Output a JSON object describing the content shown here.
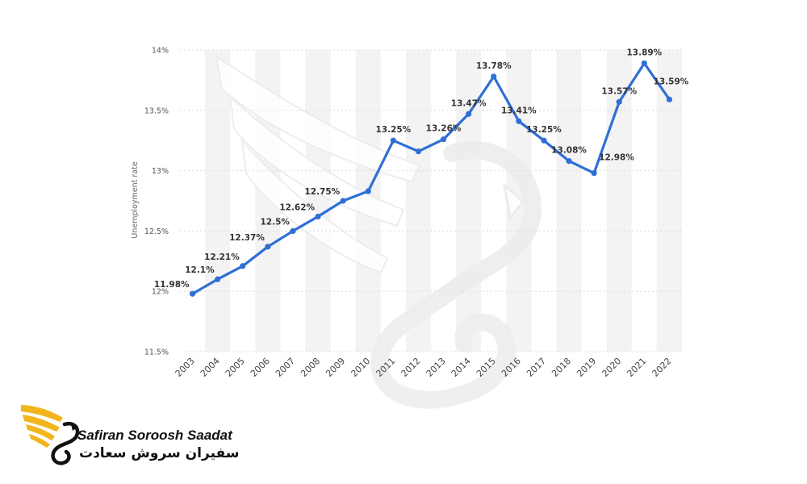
{
  "chart_data": {
    "type": "line",
    "title": "",
    "xlabel": "",
    "ylabel": "Unemployment rate",
    "x": [
      "2003",
      "2004",
      "2005",
      "2006",
      "2007",
      "2008",
      "2009",
      "2010",
      "2011",
      "2012",
      "2013",
      "2014",
      "2015",
      "2016",
      "2017",
      "2018",
      "2019",
      "2020",
      "2021",
      "2022"
    ],
    "series": [
      {
        "values": [
          11.98,
          12.1,
          12.21,
          12.37,
          12.5,
          12.62,
          12.75,
          12.83,
          13.25,
          13.16,
          13.26,
          13.47,
          13.78,
          13.41,
          13.25,
          13.08,
          12.98,
          13.57,
          13.89,
          13.59
        ],
        "labels": [
          "11.98%",
          "12.1%",
          "12.21%",
          "12.37%",
          "12.5%",
          "12.62%",
          "12.75%",
          "",
          "13.25%",
          "",
          "13.26%",
          "13.47%",
          "13.78%",
          "13.41%",
          "13.25%",
          "13.08%",
          "12.98%",
          "13.57%",
          "13.89%",
          "13.59%"
        ],
        "color": "#2f6fd6"
      }
    ],
    "yticks": [
      "11.5%",
      "12%",
      "12.5%",
      "13%",
      "13.5%",
      "14%"
    ],
    "ylim": [
      11.5,
      14
    ],
    "grid": true,
    "legend": "none",
    "colors": {
      "line": "#2f6fd6",
      "band": "#f3f3f3",
      "grid": "#dcdcdc"
    }
  },
  "watermark": {
    "logo_name": "swan-logo-watermark"
  },
  "brand": {
    "name_en": "Safiran Soroosh Saadat",
    "name_fa": "سفیران سروش سعادت",
    "logo_icon": "golden-swan-icon"
  }
}
